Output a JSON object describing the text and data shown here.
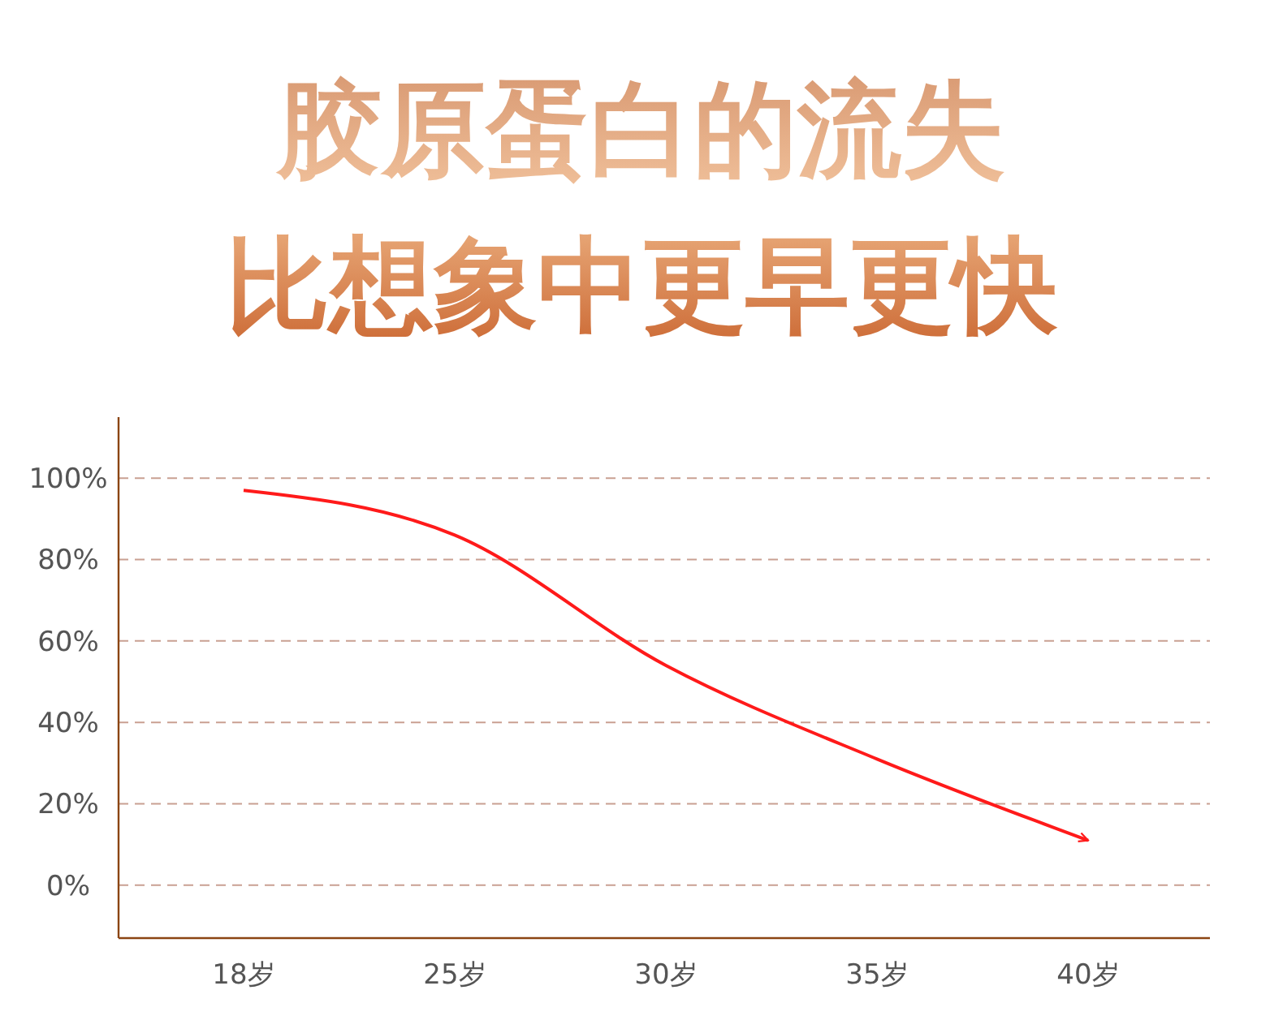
{
  "chart_data": {
    "type": "line",
    "title": "胶原蛋白的流失",
    "subtitle": "比想象中更早更快",
    "categories": [
      "18岁",
      "25岁",
      "30岁",
      "35岁",
      "40岁"
    ],
    "series": [
      {
        "color": "#ff1a1a",
        "values": [
          97,
          86,
          54,
          31,
          11
        ]
      }
    ],
    "ylim": [
      -13,
      115
    ],
    "yticks": [
      {
        "value": 0,
        "label": "0%"
      },
      {
        "value": 20,
        "label": "20%"
      },
      {
        "value": 40,
        "label": "40%"
      },
      {
        "value": 60,
        "label": "60%"
      },
      {
        "value": 80,
        "label": "80%"
      },
      {
        "value": 100,
        "label": "100%"
      }
    ],
    "grid": "y",
    "marker": "none",
    "line_style": "solid"
  }
}
